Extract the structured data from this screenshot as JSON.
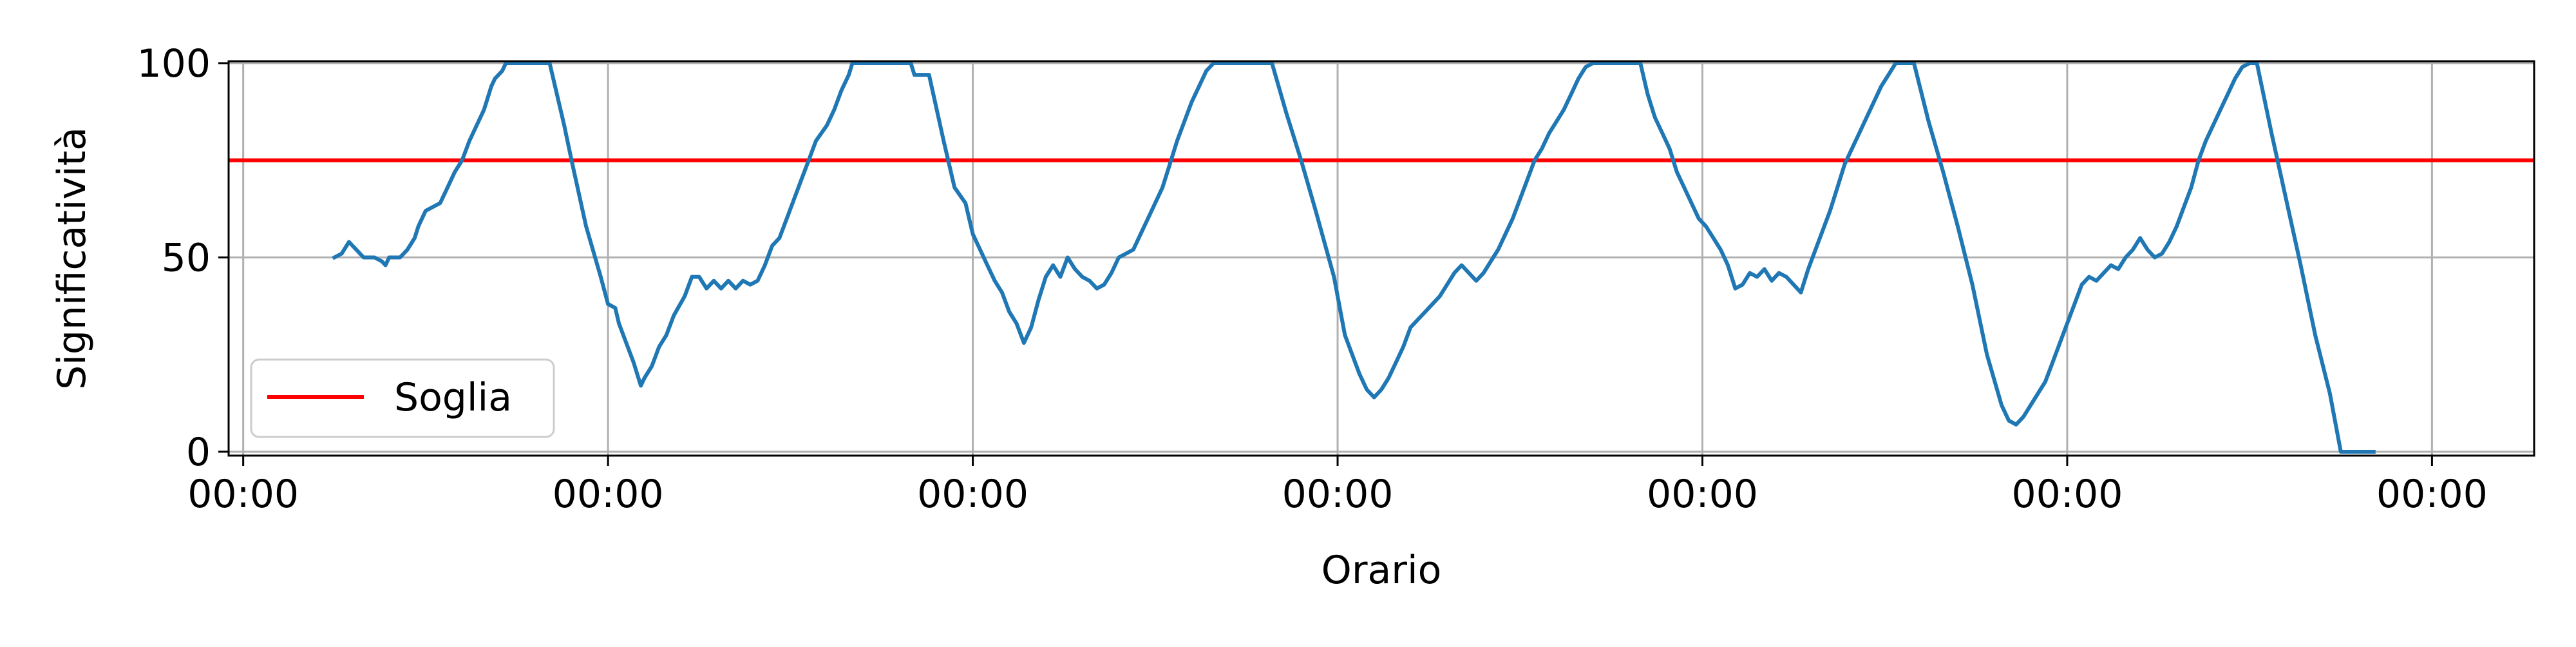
{
  "chart_data": {
    "type": "line",
    "xlabel": "Orario",
    "ylabel": "Significatività",
    "x_ticks": [
      "00:00",
      "00:00",
      "00:00",
      "00:00",
      "00:00",
      "00:00",
      "00:00"
    ],
    "x_range_days": [
      -0.04,
      6.28
    ],
    "ylim": [
      -1,
      100.5
    ],
    "y_ticks": [
      0,
      50,
      100
    ],
    "grid": true,
    "legend": {
      "placement": "lower-left",
      "entries": [
        "Soglia"
      ]
    },
    "threshold": {
      "name": "Soglia",
      "value": 75,
      "color": "#ff0000"
    },
    "series": [
      {
        "color": "#1f77b4",
        "points": [
          [
            0.25,
            50
          ],
          [
            0.27,
            51
          ],
          [
            0.29,
            54
          ],
          [
            0.31,
            52
          ],
          [
            0.33,
            50
          ],
          [
            0.36,
            50
          ],
          [
            0.38,
            49
          ],
          [
            0.39,
            48
          ],
          [
            0.4,
            50
          ],
          [
            0.43,
            50
          ],
          [
            0.45,
            52
          ],
          [
            0.47,
            55
          ],
          [
            0.48,
            58
          ],
          [
            0.5,
            62
          ],
          [
            0.52,
            63
          ],
          [
            0.54,
            64
          ],
          [
            0.56,
            68
          ],
          [
            0.58,
            72
          ],
          [
            0.6,
            75
          ],
          [
            0.62,
            80
          ],
          [
            0.64,
            84
          ],
          [
            0.66,
            88
          ],
          [
            0.67,
            91
          ],
          [
            0.68,
            94
          ],
          [
            0.69,
            96
          ],
          [
            0.71,
            98
          ],
          [
            0.72,
            100
          ],
          [
            0.84,
            100
          ],
          [
            0.86,
            92
          ],
          [
            0.88,
            84
          ],
          [
            0.9,
            75
          ],
          [
            0.94,
            58
          ],
          [
            0.98,
            45
          ],
          [
            1.0,
            38
          ],
          [
            1.02,
            37
          ],
          [
            1.03,
            33
          ],
          [
            1.05,
            28
          ],
          [
            1.07,
            23
          ],
          [
            1.08,
            20
          ],
          [
            1.09,
            17
          ],
          [
            1.1,
            19
          ],
          [
            1.12,
            22
          ],
          [
            1.14,
            27
          ],
          [
            1.16,
            30
          ],
          [
            1.18,
            35
          ],
          [
            1.21,
            40
          ],
          [
            1.23,
            45
          ],
          [
            1.25,
            45
          ],
          [
            1.27,
            42
          ],
          [
            1.29,
            44
          ],
          [
            1.31,
            42
          ],
          [
            1.33,
            44
          ],
          [
            1.35,
            42
          ],
          [
            1.37,
            44
          ],
          [
            1.39,
            43
          ],
          [
            1.41,
            44
          ],
          [
            1.43,
            48
          ],
          [
            1.45,
            53
          ],
          [
            1.47,
            55
          ],
          [
            1.49,
            60
          ],
          [
            1.51,
            65
          ],
          [
            1.53,
            70
          ],
          [
            1.55,
            75
          ],
          [
            1.57,
            80
          ],
          [
            1.6,
            84
          ],
          [
            1.62,
            88
          ],
          [
            1.64,
            93
          ],
          [
            1.66,
            97
          ],
          [
            1.67,
            100
          ],
          [
            1.83,
            100
          ],
          [
            1.84,
            97
          ],
          [
            1.88,
            97
          ],
          [
            1.92,
            80
          ],
          [
            1.95,
            68
          ],
          [
            1.98,
            64
          ],
          [
            2.0,
            56
          ],
          [
            2.02,
            52
          ],
          [
            2.04,
            48
          ],
          [
            2.06,
            44
          ],
          [
            2.08,
            41
          ],
          [
            2.1,
            36
          ],
          [
            2.12,
            33
          ],
          [
            2.14,
            28
          ],
          [
            2.16,
            32
          ],
          [
            2.18,
            39
          ],
          [
            2.2,
            45
          ],
          [
            2.22,
            48
          ],
          [
            2.24,
            45
          ],
          [
            2.26,
            50
          ],
          [
            2.28,
            47
          ],
          [
            2.3,
            45
          ],
          [
            2.32,
            44
          ],
          [
            2.34,
            42
          ],
          [
            2.36,
            43
          ],
          [
            2.38,
            46
          ],
          [
            2.4,
            50
          ],
          [
            2.42,
            51
          ],
          [
            2.44,
            52
          ],
          [
            2.46,
            56
          ],
          [
            2.48,
            60
          ],
          [
            2.5,
            64
          ],
          [
            2.52,
            68
          ],
          [
            2.54,
            74
          ],
          [
            2.56,
            80
          ],
          [
            2.58,
            85
          ],
          [
            2.6,
            90
          ],
          [
            2.62,
            94
          ],
          [
            2.64,
            98
          ],
          [
            2.66,
            100
          ],
          [
            2.82,
            100
          ],
          [
            2.86,
            87
          ],
          [
            2.9,
            75
          ],
          [
            2.94,
            62
          ],
          [
            2.99,
            45
          ],
          [
            3.02,
            30
          ],
          [
            3.04,
            25
          ],
          [
            3.06,
            20
          ],
          [
            3.08,
            16
          ],
          [
            3.1,
            14
          ],
          [
            3.12,
            16
          ],
          [
            3.14,
            19
          ],
          [
            3.16,
            23
          ],
          [
            3.18,
            27
          ],
          [
            3.2,
            32
          ],
          [
            3.22,
            34
          ],
          [
            3.24,
            36
          ],
          [
            3.26,
            38
          ],
          [
            3.28,
            40
          ],
          [
            3.3,
            43
          ],
          [
            3.32,
            46
          ],
          [
            3.34,
            48
          ],
          [
            3.36,
            46
          ],
          [
            3.38,
            44
          ],
          [
            3.4,
            46
          ],
          [
            3.42,
            49
          ],
          [
            3.44,
            52
          ],
          [
            3.46,
            56
          ],
          [
            3.48,
            60
          ],
          [
            3.5,
            65
          ],
          [
            3.52,
            70
          ],
          [
            3.54,
            75
          ],
          [
            3.56,
            78
          ],
          [
            3.58,
            82
          ],
          [
            3.6,
            85
          ],
          [
            3.62,
            88
          ],
          [
            3.64,
            92
          ],
          [
            3.66,
            96
          ],
          [
            3.68,
            99
          ],
          [
            3.7,
            100
          ],
          [
            3.83,
            100
          ],
          [
            3.85,
            92
          ],
          [
            3.87,
            86
          ],
          [
            3.89,
            82
          ],
          [
            3.91,
            78
          ],
          [
            3.93,
            72
          ],
          [
            3.95,
            68
          ],
          [
            3.97,
            64
          ],
          [
            3.99,
            60
          ],
          [
            4.01,
            58
          ],
          [
            4.03,
            55
          ],
          [
            4.05,
            52
          ],
          [
            4.07,
            48
          ],
          [
            4.09,
            42
          ],
          [
            4.11,
            43
          ],
          [
            4.13,
            46
          ],
          [
            4.15,
            45
          ],
          [
            4.17,
            47
          ],
          [
            4.19,
            44
          ],
          [
            4.21,
            46
          ],
          [
            4.23,
            45
          ],
          [
            4.25,
            43
          ],
          [
            4.27,
            41
          ],
          [
            4.29,
            47
          ],
          [
            4.31,
            52
          ],
          [
            4.33,
            57
          ],
          [
            4.35,
            62
          ],
          [
            4.37,
            68
          ],
          [
            4.39,
            74
          ],
          [
            4.41,
            78
          ],
          [
            4.43,
            82
          ],
          [
            4.45,
            86
          ],
          [
            4.47,
            90
          ],
          [
            4.49,
            94
          ],
          [
            4.51,
            97
          ],
          [
            4.53,
            100
          ],
          [
            4.58,
            100
          ],
          [
            4.62,
            85
          ],
          [
            4.66,
            72
          ],
          [
            4.7,
            58
          ],
          [
            4.74,
            43
          ],
          [
            4.78,
            25
          ],
          [
            4.82,
            12
          ],
          [
            4.84,
            8
          ],
          [
            4.86,
            7
          ],
          [
            4.88,
            9
          ],
          [
            4.9,
            12
          ],
          [
            4.92,
            15
          ],
          [
            4.94,
            18
          ],
          [
            4.96,
            23
          ],
          [
            4.98,
            28
          ],
          [
            5.0,
            33
          ],
          [
            5.02,
            38
          ],
          [
            5.04,
            43
          ],
          [
            5.06,
            45
          ],
          [
            5.08,
            44
          ],
          [
            5.1,
            46
          ],
          [
            5.12,
            48
          ],
          [
            5.14,
            47
          ],
          [
            5.16,
            50
          ],
          [
            5.18,
            52
          ],
          [
            5.2,
            55
          ],
          [
            5.22,
            52
          ],
          [
            5.24,
            50
          ],
          [
            5.26,
            51
          ],
          [
            5.28,
            54
          ],
          [
            5.3,
            58
          ],
          [
            5.32,
            63
          ],
          [
            5.34,
            68
          ],
          [
            5.36,
            75
          ],
          [
            5.38,
            80
          ],
          [
            5.4,
            84
          ],
          [
            5.42,
            88
          ],
          [
            5.44,
            92
          ],
          [
            5.46,
            96
          ],
          [
            5.48,
            99
          ],
          [
            5.5,
            100
          ],
          [
            5.52,
            100
          ],
          [
            5.56,
            82
          ],
          [
            5.6,
            65
          ],
          [
            5.64,
            48
          ],
          [
            5.68,
            30
          ],
          [
            5.72,
            15
          ],
          [
            5.75,
            0
          ],
          [
            5.84,
            0
          ]
        ]
      }
    ]
  }
}
